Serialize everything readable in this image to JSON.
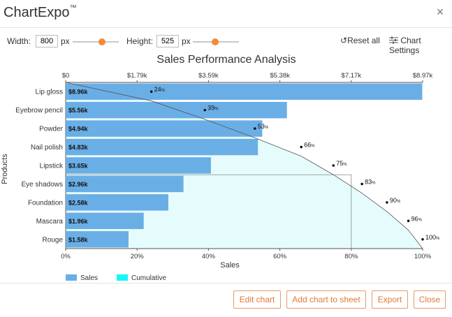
{
  "app": {
    "title": "ChartExpo",
    "trademark": "™",
    "close_icon": "×"
  },
  "toolbar": {
    "width_label": "Width:",
    "width_value": "800",
    "width_unit": "px",
    "height_label": "Height:",
    "height_value": "525",
    "height_unit": "px",
    "reset_icon": "↺",
    "reset_label": "Reset all",
    "settings_label": "Chart Settings"
  },
  "chart_data": {
    "type": "bar",
    "title": "Sales Performance Analysis",
    "xlabel": "Sales",
    "ylabel": "Products",
    "categories": [
      "Lip gloss",
      "Eyebrow pencil",
      "Powder",
      "Nail polish",
      "Lipstick",
      "Eye shadows",
      "Foundation",
      "Mascara",
      "Rouge"
    ],
    "series": [
      {
        "name": "Sales",
        "values": [
          8.96,
          5.56,
          4.94,
          4.83,
          3.65,
          2.96,
          2.58,
          1.96,
          1.58
        ],
        "labels": [
          "$8.96k",
          "$5.56k",
          "$4.94k",
          "$4.83k",
          "$3.65k",
          "$2.96k",
          "$2.58k",
          "$1.96k",
          "$1.58k"
        ],
        "color": "#6aaee6"
      },
      {
        "name": "Cumulative",
        "values": [
          24,
          39,
          53,
          66,
          75,
          83,
          90,
          96,
          100
        ],
        "labels": [
          "24",
          "39",
          "53",
          "66",
          "75",
          "83",
          "90",
          "96",
          "100"
        ],
        "unit": "%",
        "color": "#e6fcfc",
        "legend_color": "#16f7f7"
      }
    ],
    "top_axis_ticks": [
      "$0",
      "$1.79k",
      "$3.59k",
      "$5.38k",
      "$7.17k",
      "$8.97k"
    ],
    "bottom_axis_ticks": [
      "0%",
      "20%",
      "40%",
      "60%",
      "80%",
      "100%"
    ],
    "x_max": 8.97,
    "reference_line_pct": 80,
    "legend_position": "bottom-left"
  },
  "footer": {
    "edit_label": "Edit chart",
    "add_label": "Add chart to sheet",
    "export_label": "Export",
    "close_label": "Close"
  }
}
